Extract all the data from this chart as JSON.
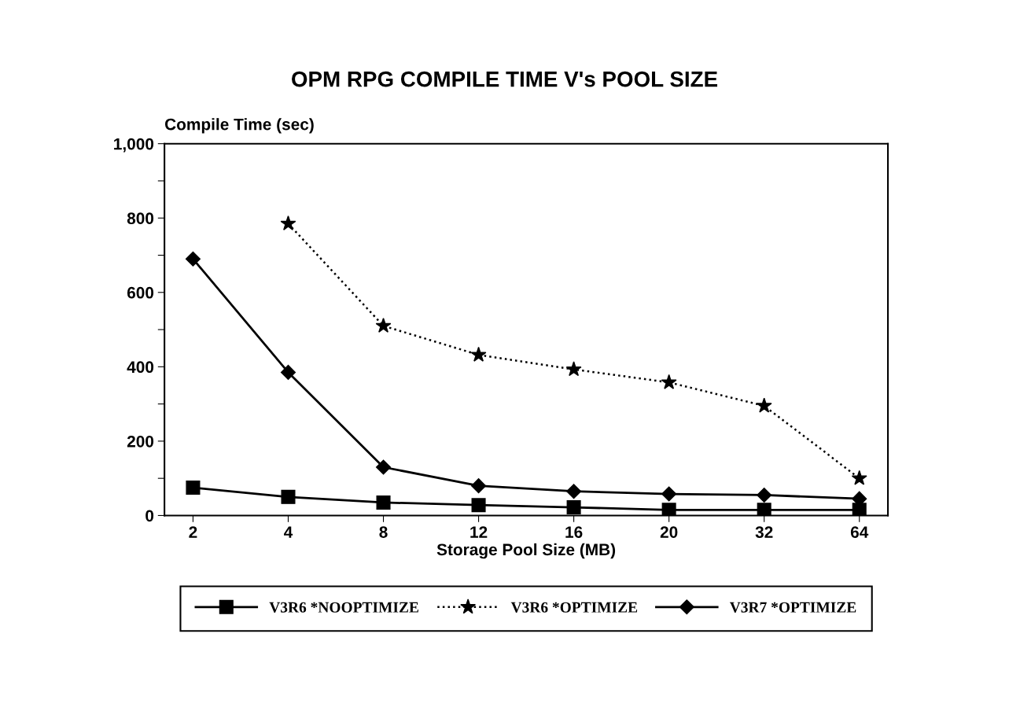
{
  "chart_data": {
    "type": "line",
    "title": "OPM RPG COMPILE TIME V's POOL SIZE",
    "ylabel": "Compile Time (sec)",
    "xlabel": "Storage Pool Size (MB)",
    "categories": [
      "2",
      "4",
      "8",
      "12",
      "16",
      "20",
      "32",
      "64"
    ],
    "series": [
      {
        "name": "V3R6 *NOOPTIMIZE",
        "color": "#000000",
        "marker": "square",
        "line_style": "solid",
        "values": [
          75,
          50,
          35,
          28,
          22,
          15,
          15,
          15
        ]
      },
      {
        "name": "V3R6 *OPTIMIZE",
        "color": "#000000",
        "marker": "star",
        "line_style": "dotted",
        "values": [
          null,
          785,
          510,
          432,
          393,
          358,
          295,
          100
        ]
      },
      {
        "name": "V3R7 *OPTIMIZE",
        "color": "#000000",
        "marker": "diamond",
        "line_style": "solid",
        "values": [
          690,
          385,
          130,
          80,
          65,
          58,
          55,
          45
        ]
      }
    ],
    "ylim": [
      0,
      1000
    ],
    "yticks": [
      0,
      {
        "value": 100,
        "label": null
      },
      {
        "value": 200,
        "label": "200"
      },
      {
        "value": 300,
        "label": null
      },
      {
        "value": 400,
        "label": "400"
      },
      {
        "value": 500,
        "label": null
      },
      {
        "value": 600,
        "label": "600"
      },
      {
        "value": 700,
        "label": null
      },
      {
        "value": 800,
        "label": "800"
      },
      {
        "value": 900,
        "label": null
      },
      {
        "value": 1000,
        "label": "1,000"
      }
    ],
    "grid": false,
    "legend": "bottom"
  }
}
